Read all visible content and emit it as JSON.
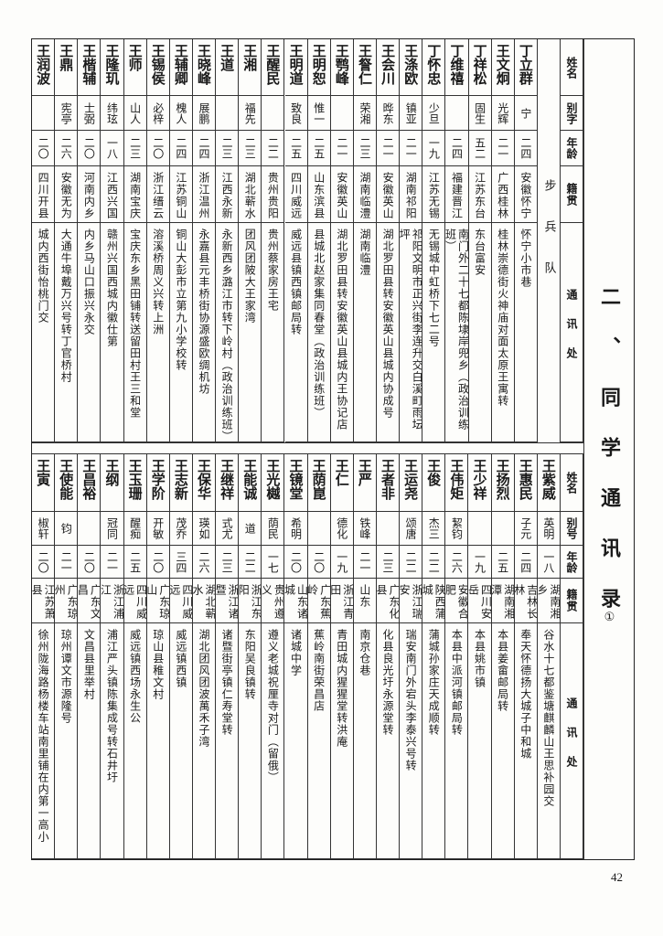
{
  "title": {
    "text": "二、同学通讯录",
    "footnote": "①"
  },
  "page_number": "42",
  "top_table": {
    "headers": {
      "name": "姓名",
      "alias": "别字",
      "age": "年龄",
      "native": "籍贯",
      "address": "通讯处"
    },
    "troop": "步兵队",
    "rows": [
      {
        "name": "丁立群",
        "alias": "宁",
        "age": "二四",
        "native": "安徽怀宁",
        "address": "怀宁小市巷"
      },
      {
        "name": "王文炯",
        "alias": "光辉",
        "age": "二一",
        "native": "广西桂林",
        "address": "桂林崇德街火神庙对面太原王寓转"
      },
      {
        "name": "丁祥松",
        "alias": "固生",
        "age": "五二",
        "native": "江苏东台",
        "address": "东台富安"
      },
      {
        "name": "丁维禧",
        "alias": "",
        "age": "二四",
        "native": "福建晋江",
        "address": "南门外二十七都陈埭岸兜乡（政治训练班）"
      },
      {
        "name": "丁怀忠",
        "alias": "少旦",
        "age": "一九",
        "native": "江苏无锡",
        "address": "无锡城中虹桥下七二号"
      },
      {
        "name": "王涤欧",
        "alias": "镇亚",
        "age": "二一",
        "native": "湖南祁阳",
        "address": "祁阳文明市正兴街李连升交白溪町雨坛坪"
      },
      {
        "name": "王会川",
        "alias": "晔东",
        "age": "二一",
        "native": "安徽英山",
        "address": "湖北罗田县转安徽英山县城内协成号"
      },
      {
        "name": "王詧仁",
        "alias": "荣湘",
        "age": "二三",
        "native": "湖南临澧",
        "address": "湖南临澧"
      },
      {
        "name": "王鹗峰",
        "alias": "",
        "age": "二一",
        "native": "安徽英山",
        "address": "湖北罗田县转安徽英山县城内王协记店"
      },
      {
        "name": "王明恕",
        "alias": "惟一",
        "age": "二五",
        "native": "山东滨县",
        "address": "县城北赵家集同春堂（政治训练班）"
      },
      {
        "name": "王明道",
        "alias": "致良",
        "age": "二五",
        "native": "四川威远",
        "address": "威远县镇西镇邮局转"
      },
      {
        "name": "王醒民",
        "alias": "",
        "age": "二二",
        "native": "贵州贵阳",
        "address": "贵州蔡家房王宅"
      },
      {
        "name": "王湘",
        "alias": "福先",
        "age": "二三",
        "native": "湖北蕲水",
        "address": "团风团陂大王家湾"
      },
      {
        "name": "王道",
        "alias": "",
        "age": "二三",
        "native": "江西永新",
        "address": "永新西乡潞江市转下岭村（政治训练班）"
      },
      {
        "name": "王晓峰",
        "alias": "展鹏",
        "age": "二四",
        "native": "浙江温州",
        "address": "永嘉县元丰桥街协源盛欧绸机坊"
      },
      {
        "name": "王辅卿",
        "alias": "槐人",
        "age": "二四",
        "native": "江苏铜山",
        "address": "铜山大彭市立第九小学校转"
      },
      {
        "name": "王锡侯",
        "alias": "必梓",
        "age": "二〇",
        "native": "浙江缙云",
        "address": "溶溪桥周义兴转上洲"
      },
      {
        "name": "王师",
        "alias": "山人",
        "age": "二三",
        "native": "湖南宝庆",
        "address": "宝庆东乡黑田铺转送留田村王三和堂"
      },
      {
        "name": "王隆玑",
        "alias": "纬玹",
        "age": "一八",
        "native": "江西兴国",
        "address": "赣州兴国西城内徽仕第"
      },
      {
        "name": "王楷辅",
        "alias": "士弼",
        "age": "二〇",
        "native": "河南内乡",
        "address": "内乡马山口振兴永交"
      },
      {
        "name": "王鼎",
        "alias": "宪亭",
        "age": "二六",
        "native": "安徽无为",
        "address": "大通牛埠戴万兴号转丁官桥村"
      },
      {
        "name": "王润波",
        "alias": "",
        "age": "二〇",
        "native": "四川开县",
        "address": "城内西街怡桃门交"
      }
    ]
  },
  "bottom_table": {
    "headers": {
      "name": "姓名",
      "alias": "别号",
      "age": "年龄",
      "native": "籍贯",
      "address": "通讯处"
    },
    "rows": [
      {
        "name": "王紫威",
        "alias": "英明",
        "age": "一八",
        "native": "湖南湘乡",
        "address": "谷水十七都鉴塘麒麟山王思补园交"
      },
      {
        "name": "王惠民",
        "alias": "子元",
        "age": "二四",
        "native": "吉林长林",
        "address": "奉天怀德扬大城子中和城"
      },
      {
        "name": "王扬烈",
        "alias": "",
        "age": "二五",
        "native": "湖南湘潭",
        "address": "本县姜畲邮局转"
      },
      {
        "name": "王少祥",
        "alias": "",
        "age": "一九",
        "native": "四川安岳",
        "address": "本县姚市镇"
      },
      {
        "name": "王伟矩",
        "alias": "絜钧",
        "age": "二六",
        "native": "安徽合肥",
        "address": "本县中派河镇邮局转"
      },
      {
        "name": "王俊",
        "alias": "杰三",
        "age": "二二",
        "native": "陕西蒲城",
        "address": "蒲城孙家庄天成顺转"
      },
      {
        "name": "王运尧",
        "alias": "颂唐",
        "age": "二二",
        "native": "浙江瑞安",
        "address": "瑞安南门外宕头李泰兴号转"
      },
      {
        "name": "王者非",
        "alias": "",
        "age": "二三",
        "native": "广东化县",
        "address": "化县良光圩永源堂转"
      },
      {
        "name": "王严",
        "alias": "铁峰",
        "age": "二一",
        "native": "山东",
        "address": "南京仓巷"
      },
      {
        "name": "王仁",
        "alias": "德化",
        "age": "一九",
        "native": "浙江青田",
        "address": "青田城内猩猩堂转洪庵"
      },
      {
        "name": "王荫崑",
        "alias": "",
        "age": "二〇",
        "native": "广东蕉岭",
        "address": "蕉岭南街荣昌店"
      },
      {
        "name": "王镜堂",
        "alias": "希明",
        "age": "二〇",
        "native": "山东诸城",
        "address": "诸城中学"
      },
      {
        "name": "王光樾",
        "alias": "荫民",
        "age": "一七",
        "native": "贵州遵义",
        "address": "遵义老城祝厘寺对门（留俄）"
      },
      {
        "name": "王能诚",
        "alias": "道",
        "age": "二二",
        "native": "浙江东阳",
        "address": "东阳吴良镇转"
      },
      {
        "name": "王继祥",
        "alias": "式尤",
        "age": "二三",
        "native": "浙江诸暨",
        "address": "诸暨街亭镇仁寿堂转"
      },
      {
        "name": "王保华",
        "alias": "瑛如",
        "age": "二六",
        "native": "湖北蕲水",
        "address": "湖北团风团波萬禾子湾"
      },
      {
        "name": "王志新",
        "alias": "茂乔",
        "age": "三四",
        "native": "四川威远",
        "address": "威远镇西镇"
      },
      {
        "name": "王学阶",
        "alias": "开敏",
        "age": "二〇",
        "native": "广东琼山",
        "address": "琼山县稚文村"
      },
      {
        "name": "王玉珊",
        "alias": "醒痴",
        "age": "二五",
        "native": "四川威远",
        "address": "威远镇西场永生公"
      },
      {
        "name": "王纲",
        "alias": "冠同",
        "age": "二一",
        "native": "浙江浦江",
        "address": "浦江严头镇陈集成号转石井圩"
      },
      {
        "name": "王昌裕",
        "alias": "",
        "age": "二〇",
        "native": "广东文昌",
        "address": "文昌县里举村"
      },
      {
        "name": "王使能",
        "alias": "钧",
        "age": "二一",
        "native": "广东琼州",
        "address": "琼州谭文市源隆号"
      },
      {
        "name": "王寅",
        "alias": "椒轩",
        "age": "二〇",
        "native": "江苏萧县",
        "address": "徐州陇海路杨楼车站南里铺在内第一高小"
      }
    ]
  }
}
